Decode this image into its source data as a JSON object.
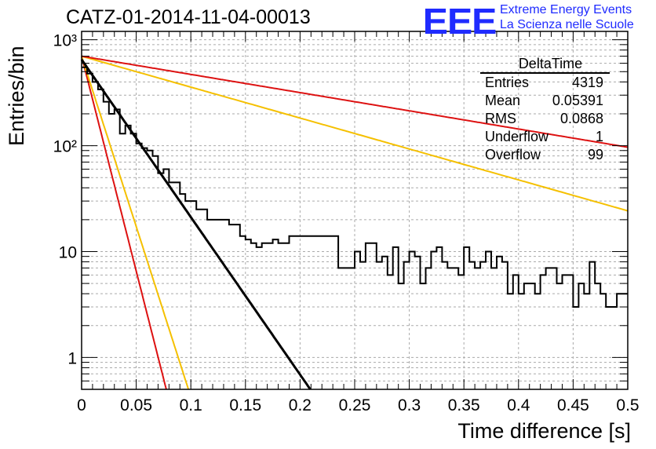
{
  "header": {
    "run_title": "CATZ-01-2014-11-04-00013",
    "logo_mark": "EEE",
    "logo_line1": "Extreme Energy Events",
    "logo_line2": "La Scienza nelle Scuole"
  },
  "stats_box": {
    "title": "DeltaTime",
    "rows": [
      {
        "label": "Entries",
        "value": "4319"
      },
      {
        "label": "Mean",
        "value": "0.05391"
      },
      {
        "label": "RMS",
        "value": "0.0868"
      },
      {
        "label": "Underflow",
        "value": "1"
      },
      {
        "label": "Overflow",
        "value": "99"
      }
    ]
  },
  "colors": {
    "histogram": "#000000",
    "fit_black": "#000000",
    "fit_red": "#dd1111",
    "fit_yellow": "#f5c000",
    "grid": "#aaaaaa"
  },
  "chart_data": {
    "type": "line",
    "xlabel": "Time difference [s]",
    "ylabel": "Entries/bin",
    "xlim": [
      0,
      0.5
    ],
    "ylim": [
      0.5,
      1200
    ],
    "yscale": "log",
    "grid": true,
    "x_ticks": [
      "0",
      "0.05",
      "0.1",
      "0.15",
      "0.2",
      "0.25",
      "0.3",
      "0.35",
      "0.4",
      "0.45",
      "0.5"
    ],
    "y_ticks": [
      "1",
      "10",
      "10²",
      "10³"
    ],
    "histogram": {
      "bin_width": 0.005,
      "counts": [
        550,
        480,
        400,
        340,
        260,
        200,
        220,
        130,
        155,
        130,
        105,
        95,
        90,
        80,
        55,
        60,
        45,
        45,
        35,
        30,
        30,
        25,
        25,
        20,
        20,
        20,
        20,
        18,
        18,
        14,
        13,
        12,
        11,
        12,
        12,
        13,
        12,
        12,
        14,
        14,
        14,
        14,
        14,
        14,
        14,
        14,
        14,
        7,
        7,
        7,
        10,
        8,
        12,
        12,
        8,
        9,
        6,
        11,
        5,
        8,
        10,
        9,
        5,
        7,
        10,
        11,
        8,
        7,
        7,
        6,
        11,
        8,
        7,
        8,
        10,
        7,
        9,
        8,
        4,
        6,
        4,
        5,
        5,
        4,
        6,
        7,
        7,
        5,
        6,
        6,
        3,
        5,
        4,
        8,
        5,
        4,
        3,
        3,
        4,
        4
      ]
    },
    "series": [
      {
        "color": "red",
        "A": 700,
        "tau": 0.0107
      },
      {
        "color": "yellow",
        "A": 700,
        "tau": 0.0135
      },
      {
        "color": "black",
        "A": 650,
        "tau": 0.0292
      },
      {
        "color": "yellow",
        "A": 700,
        "tau": 0.1487
      },
      {
        "color": "red",
        "A": 700,
        "tau": 0.2526
      }
    ]
  }
}
